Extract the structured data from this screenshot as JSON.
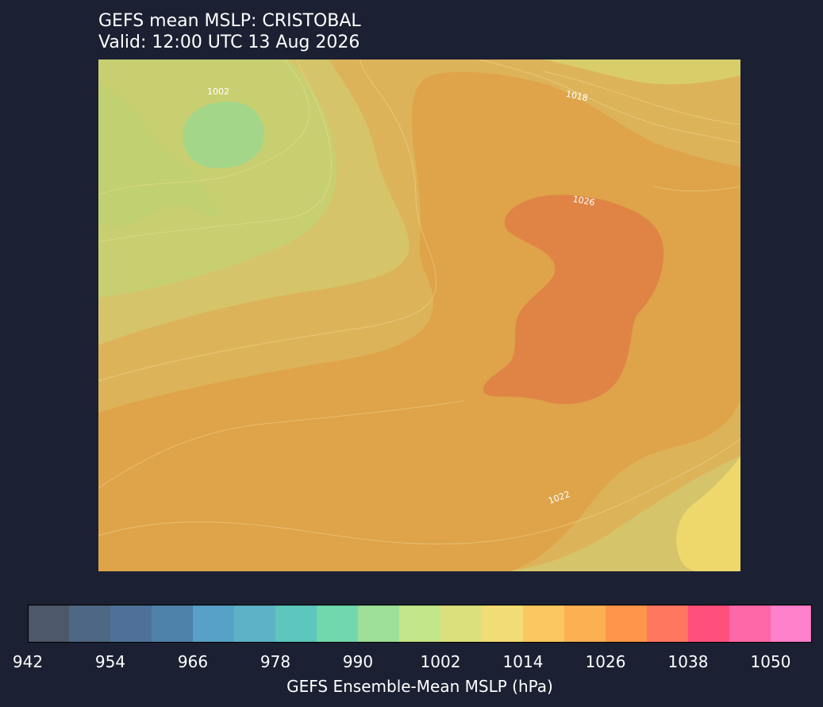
{
  "title": {
    "line1": "GEFS mean MSLP: CRISTOBAL",
    "line2": "Valid: 12:00 UTC 13 Aug 2026"
  },
  "map": {
    "contour_labels": [
      "1002",
      "1018",
      "1026",
      "1022"
    ],
    "level_colors": {
      "high_center": "#e08446",
      "interior": "#dfa34a",
      "mid": "#ddb35a",
      "outer": "#d6c56a",
      "low": "#c8cf71",
      "low_center": "#a4d68a",
      "se_land": "#efd86e"
    }
  },
  "colorbar": {
    "label": "GEFS Ensemble-Mean MSLP (hPa)",
    "min": 942,
    "max": 1056,
    "step": 6,
    "colors": [
      "#4e586b",
      "#4e6784",
      "#4f7199",
      "#4f82aa",
      "#57a0c8",
      "#5db2c8",
      "#5dc6bd",
      "#71d8ae",
      "#9ddf98",
      "#c3e68b",
      "#dbe07c",
      "#f2dc75",
      "#fbc760",
      "#fcb052",
      "#fd964a",
      "#ff775f",
      "#ff4f7d",
      "#ff68a8",
      "#ff80cb"
    ],
    "ticks": [
      "942",
      "954",
      "966",
      "978",
      "990",
      "1002",
      "1014",
      "1026",
      "1038",
      "1050"
    ]
  }
}
